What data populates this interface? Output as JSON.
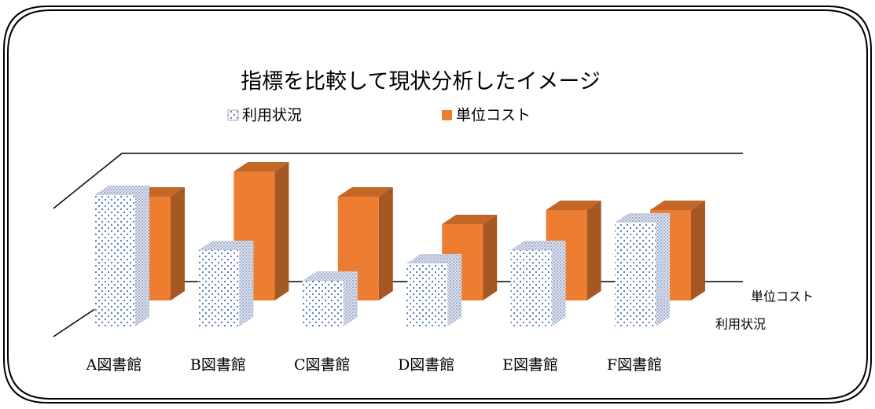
{
  "chart_data": {
    "type": "bar3d",
    "title": "指標を比較して現状分析したイメージ",
    "categories": [
      "A図書館",
      "B図書館",
      "C図書館",
      "D図書館",
      "E図書館",
      "F図書館"
    ],
    "series": [
      {
        "name": "利用状況",
        "color": "#4472c4",
        "values": [
          167,
          97,
          58,
          80,
          97,
          132
        ]
      },
      {
        "name": "単位コスト",
        "color": "#ed7d31",
        "values": [
          132,
          164,
          132,
          97,
          115,
          115
        ]
      }
    ]
  }
}
